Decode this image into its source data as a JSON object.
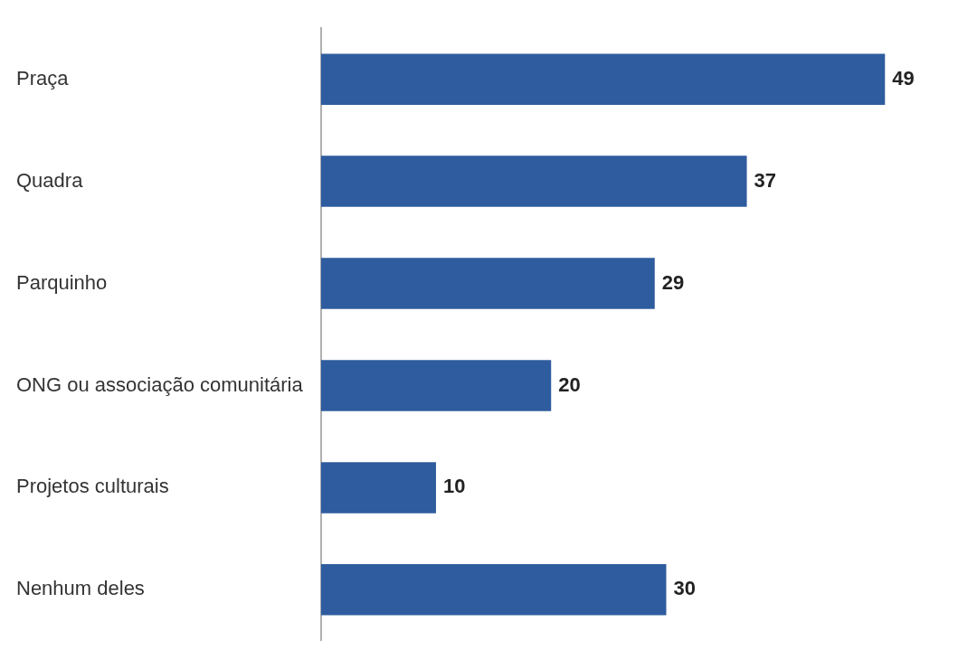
{
  "chart_data": {
    "type": "bar",
    "orientation": "horizontal",
    "categories": [
      "Praça",
      "Quadra",
      "Parquinho",
      "ONG ou associação comunitária",
      "Projetos culturais",
      "Nenhum deles"
    ],
    "values": [
      49,
      37,
      29,
      20,
      10,
      30
    ],
    "color": "#2e5c9e",
    "data_labels": true
  }
}
